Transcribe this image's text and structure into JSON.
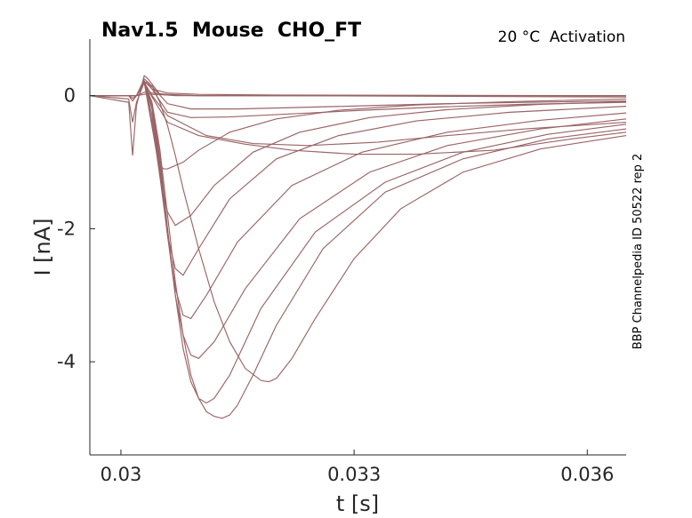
{
  "chart_data": {
    "type": "line",
    "title": "Nav1.5  Mouse  CHO_FT",
    "subtitle": "20 °C  Activation",
    "side_label": "BBP Channelpedia ID 50522 rep 2",
    "xlabel": "t [s]",
    "ylabel": "I [nA]",
    "xlim": [
      0.0296,
      0.0365
    ],
    "ylim": [
      -5.4,
      0.85
    ],
    "x_ticks": [
      0.03,
      0.033,
      0.036
    ],
    "x_tick_labels": [
      "0.03",
      "0.033",
      "0.036"
    ],
    "y_ticks": [
      0,
      -2,
      -4
    ],
    "y_tick_labels": [
      "0",
      "-2",
      "-4"
    ],
    "grid": false,
    "line_color": "#9a6466",
    "series": [
      {
        "x": [
          0.0296,
          0.0301,
          0.03015,
          0.0302,
          0.0303,
          0.03035,
          0.0304,
          0.0306,
          0.031,
          0.032,
          0.0365
        ],
        "y": [
          0.0,
          0.0,
          -0.04,
          0.0,
          0.02,
          0.03,
          0.02,
          0.01,
          0.0,
          0.0,
          0.0
        ]
      },
      {
        "x": [
          0.0296,
          0.0301,
          0.03015,
          0.0302,
          0.0303,
          0.03035,
          0.0304,
          0.0306,
          0.031,
          0.032,
          0.0365
        ],
        "y": [
          0.0,
          0.0,
          -0.08,
          0.0,
          0.05,
          0.06,
          0.04,
          0.02,
          0.0,
          0.0,
          0.0
        ]
      },
      {
        "x": [
          0.0296,
          0.0301,
          0.03015,
          0.0302,
          0.0303,
          0.03035,
          0.0304,
          0.0306,
          0.031,
          0.032,
          0.0365
        ],
        "y": [
          0.0,
          -0.05,
          -0.4,
          -0.1,
          0.2,
          0.2,
          0.1,
          0.04,
          0.02,
          0.01,
          0.0
        ]
      },
      {
        "x": [
          0.0296,
          0.0301,
          0.03015,
          0.0302,
          0.0303,
          0.03035,
          0.0305,
          0.0307,
          0.031,
          0.032,
          0.0365
        ],
        "y": [
          0.0,
          -0.1,
          -0.9,
          -0.15,
          0.3,
          0.25,
          0.02,
          0.0,
          0.0,
          0.0,
          -0.02
        ]
      },
      {
        "x": [
          0.0296,
          0.0302,
          0.0303,
          0.03035,
          0.0306,
          0.0309,
          0.0315,
          0.0322,
          0.0332,
          0.0342,
          0.0352,
          0.0365
        ],
        "y": [
          0.0,
          0.0,
          0.25,
          0.2,
          -0.12,
          -0.2,
          -0.2,
          -0.18,
          -0.15,
          -0.12,
          -0.1,
          -0.08
        ]
      },
      {
        "x": [
          0.0296,
          0.0302,
          0.0303,
          0.0304,
          0.0306,
          0.0309,
          0.0314,
          0.0321,
          0.0331,
          0.0341,
          0.0352,
          0.0365
        ],
        "y": [
          0.0,
          0.0,
          0.22,
          0.1,
          -0.25,
          -0.33,
          -0.32,
          -0.28,
          -0.22,
          -0.17,
          -0.13,
          -0.1
        ]
      },
      {
        "x": [
          0.0296,
          0.0302,
          0.0303,
          0.0304,
          0.0306,
          0.0311,
          0.0317,
          0.0324,
          0.0333,
          0.0342,
          0.0352,
          0.0365
        ],
        "y": [
          0.0,
          0.0,
          0.2,
          0.0,
          -0.3,
          -0.6,
          -0.72,
          -0.75,
          -0.7,
          -0.6,
          -0.5,
          -0.4
        ]
      },
      {
        "x": [
          0.0296,
          0.0302,
          0.0303,
          0.0304,
          0.0306,
          0.031,
          0.0316,
          0.0322,
          0.033,
          0.0338,
          0.0348,
          0.0358,
          0.0365
        ],
        "y": [
          0.0,
          0.0,
          0.2,
          -0.02,
          -0.4,
          -0.6,
          -0.73,
          -0.82,
          -0.88,
          -0.88,
          -0.82,
          -0.65,
          -0.55
        ]
      },
      {
        "x": [
          0.0296,
          0.0302,
          0.0303,
          0.03045,
          0.0305,
          0.03055,
          0.0306,
          0.0308,
          0.031,
          0.0314,
          0.032,
          0.0328,
          0.0338,
          0.035,
          0.0365
        ],
        "y": [
          0.0,
          0.0,
          0.2,
          -0.8,
          -1.05,
          -1.1,
          -1.1,
          -1.0,
          -0.82,
          -0.55,
          -0.35,
          -0.22,
          -0.14,
          -0.09,
          -0.05
        ]
      },
      {
        "x": [
          0.0296,
          0.0302,
          0.0303,
          0.0304,
          0.0305,
          0.0306,
          0.0307,
          0.0309,
          0.0312,
          0.0317,
          0.0323,
          0.0332,
          0.0342,
          0.0354,
          0.0365
        ],
        "y": [
          0.0,
          0.0,
          0.2,
          -0.4,
          -1.2,
          -1.75,
          -1.95,
          -1.8,
          -1.35,
          -0.85,
          -0.55,
          -0.33,
          -0.21,
          -0.13,
          -0.09
        ]
      },
      {
        "x": [
          0.0296,
          0.0302,
          0.0303,
          0.0304,
          0.0305,
          0.0306,
          0.0307,
          0.0308,
          0.031,
          0.0314,
          0.032,
          0.0328,
          0.0338,
          0.035,
          0.0365
        ],
        "y": [
          0.0,
          0.0,
          0.2,
          -0.3,
          -1.2,
          -2.1,
          -2.6,
          -2.7,
          -2.3,
          -1.55,
          -0.95,
          -0.6,
          -0.38,
          -0.25,
          -0.16
        ]
      },
      {
        "x": [
          0.0296,
          0.0302,
          0.0303,
          0.0304,
          0.0305,
          0.0306,
          0.0307,
          0.0308,
          0.0309,
          0.0311,
          0.0315,
          0.0322,
          0.0331,
          0.0342,
          0.0354,
          0.0365
        ],
        "y": [
          0.0,
          0.0,
          0.2,
          -0.2,
          -1.1,
          -2.1,
          -2.9,
          -3.3,
          -3.35,
          -3.0,
          -2.2,
          -1.35,
          -0.85,
          -0.55,
          -0.37,
          -0.26
        ]
      },
      {
        "x": [
          0.0296,
          0.0302,
          0.0303,
          0.0304,
          0.0305,
          0.0306,
          0.0307,
          0.0308,
          0.0309,
          0.031,
          0.0312,
          0.0316,
          0.0323,
          0.0332,
          0.0342,
          0.0354,
          0.0365
        ],
        "y": [
          0.0,
          0.0,
          0.2,
          -0.15,
          -1.0,
          -2.1,
          -3.0,
          -3.6,
          -3.9,
          -3.95,
          -3.7,
          -2.9,
          -1.85,
          -1.15,
          -0.75,
          -0.5,
          -0.35
        ]
      },
      {
        "x": [
          0.0296,
          0.0302,
          0.0303,
          0.0304,
          0.0305,
          0.0306,
          0.0307,
          0.0308,
          0.0309,
          0.031,
          0.0311,
          0.0312,
          0.0314,
          0.0318,
          0.0325,
          0.0334,
          0.0344,
          0.0355,
          0.0365
        ],
        "y": [
          0.0,
          0.0,
          0.2,
          -0.15,
          -0.9,
          -2.0,
          -3.0,
          -3.8,
          -4.3,
          -4.55,
          -4.62,
          -4.55,
          -4.2,
          -3.2,
          -2.05,
          -1.3,
          -0.85,
          -0.58,
          -0.43
        ]
      },
      {
        "x": [
          0.0296,
          0.0302,
          0.0303,
          0.0304,
          0.0305,
          0.0306,
          0.0307,
          0.0308,
          0.0309,
          0.031,
          0.0311,
          0.0312,
          0.0313,
          0.0314,
          0.0315,
          0.0317,
          0.032,
          0.0326,
          0.0334,
          0.0344,
          0.0355,
          0.0365
        ],
        "y": [
          0.0,
          0.0,
          0.2,
          -0.1,
          -0.8,
          -1.8,
          -2.8,
          -3.6,
          -4.2,
          -4.55,
          -4.75,
          -4.82,
          -4.85,
          -4.8,
          -4.65,
          -4.2,
          -3.45,
          -2.3,
          -1.45,
          -0.95,
          -0.65,
          -0.5
        ]
      },
      {
        "x": [
          0.0296,
          0.0302,
          0.0303,
          0.0304,
          0.0305,
          0.0306,
          0.0307,
          0.0308,
          0.031,
          0.0312,
          0.0314,
          0.0316,
          0.0318,
          0.0319,
          0.032,
          0.0322,
          0.0325,
          0.033,
          0.0336,
          0.0344,
          0.0354,
          0.0365
        ],
        "y": [
          0.0,
          0.0,
          0.2,
          0.15,
          -0.1,
          -0.45,
          -0.9,
          -1.4,
          -2.3,
          -3.1,
          -3.7,
          -4.1,
          -4.28,
          -4.3,
          -4.25,
          -3.95,
          -3.35,
          -2.45,
          -1.7,
          -1.15,
          -0.8,
          -0.6
        ]
      }
    ]
  }
}
